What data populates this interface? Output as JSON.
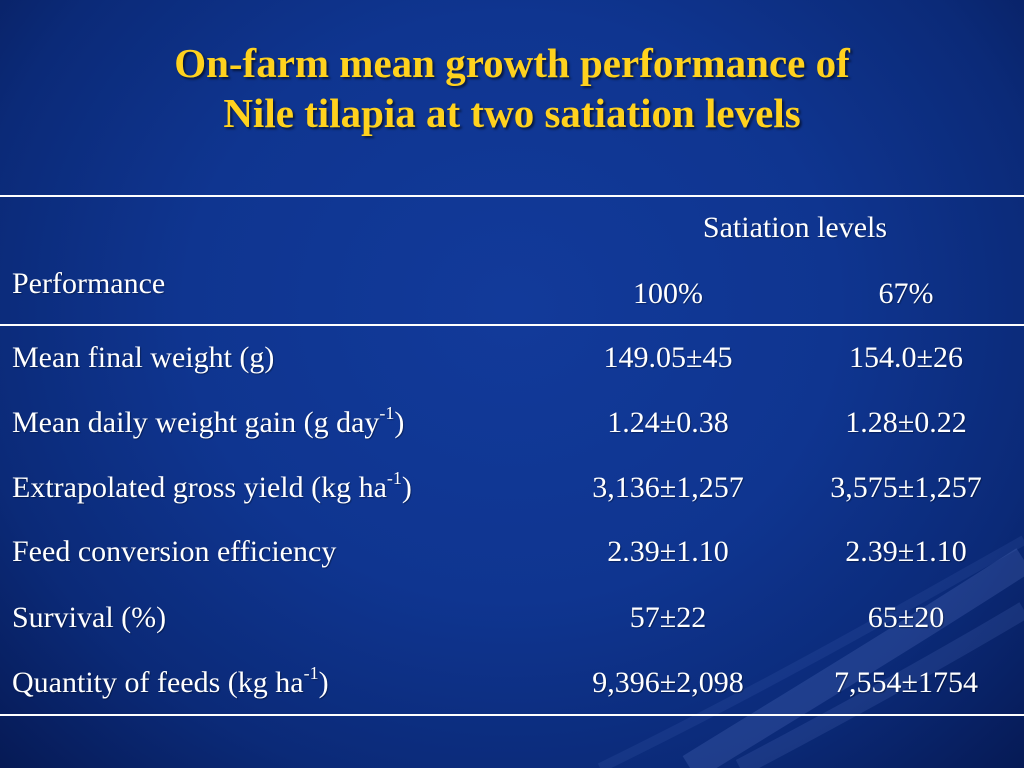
{
  "slide": {
    "title_line1": "On-farm mean growth performance of",
    "title_line2": "Nile tilapia at two satiation levels"
  },
  "table": {
    "row_header": "Performance",
    "group_header": "Satiation levels",
    "columns": [
      "100%",
      "67%"
    ],
    "rows": [
      {
        "label": "Mean final weight (g)",
        "label_pre": "",
        "sup": "",
        "label_post": "",
        "v1": "149.05±45",
        "v2": "154.0±26"
      },
      {
        "label": "",
        "label_pre": "Mean daily weight gain (g day",
        "sup": "-1",
        "label_post": ")",
        "v1": "1.24±0.38",
        "v2": "1.28±0.22"
      },
      {
        "label": "",
        "label_pre": "Extrapolated gross yield (kg ha",
        "sup": "-1",
        "label_post": ")",
        "v1": "3,136±1,257",
        "v2": "3,575±1,257"
      },
      {
        "label": "Feed conversion efficiency",
        "label_pre": "",
        "sup": "",
        "label_post": "",
        "v1": "2.39±1.10",
        "v2": "2.39±1.10"
      },
      {
        "label": "Survival (%)",
        "label_pre": "",
        "sup": "",
        "label_post": "",
        "v1": "57±22",
        "v2": "65±20"
      },
      {
        "label": "",
        "label_pre": "Quantity of  feeds (kg ha",
        "sup": "-1",
        "label_post": ")",
        "v1": "9,396±2,098",
        "v2": "7,554±1754"
      }
    ]
  },
  "colors": {
    "background": "#0f3590",
    "title": "#ffd21e",
    "text": "#ffffff"
  }
}
